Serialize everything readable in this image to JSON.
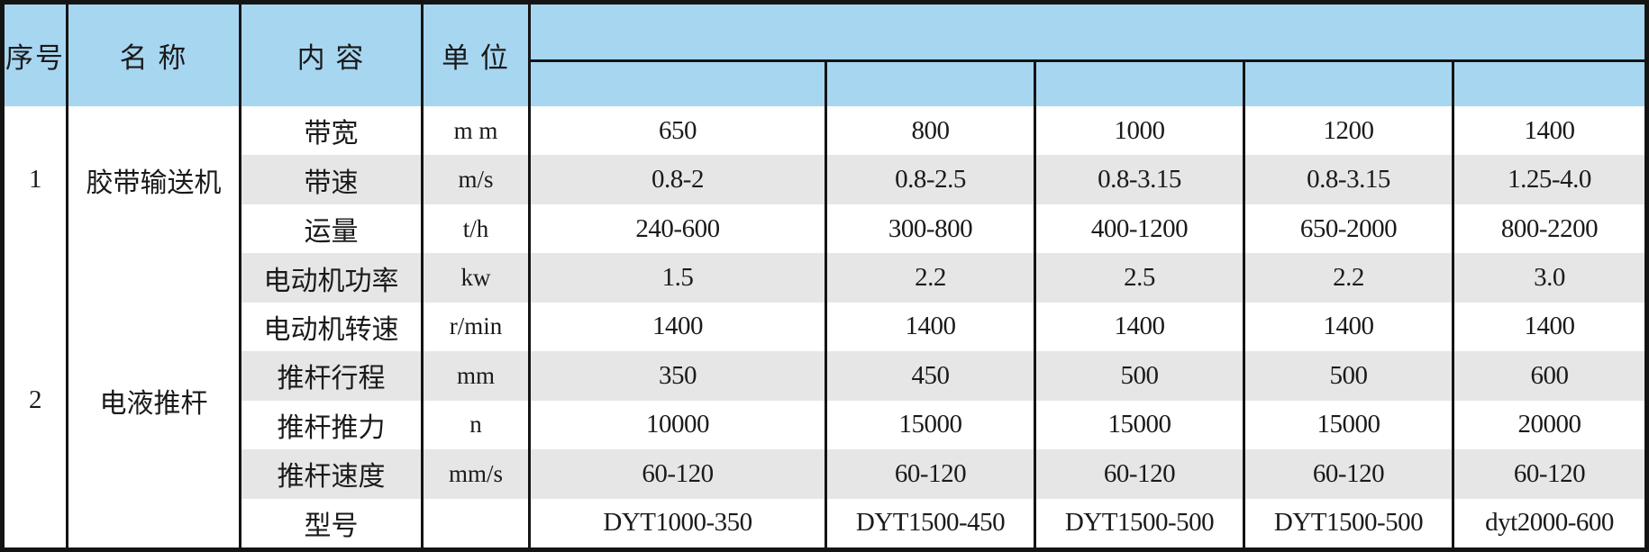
{
  "table": {
    "header": {
      "col_index": "序号",
      "col_name": "名 称",
      "col_content": "内 容",
      "col_unit": "单 位"
    },
    "colors": {
      "header_blue": "#a7d6f1",
      "stripe_gray": "#e6e6e6",
      "grid_line": "#141414"
    },
    "sections": [
      {
        "index": "1",
        "name": "胶带输送机",
        "rows": [
          {
            "label": "带宽",
            "unit": "m m",
            "values": [
              "650",
              "800",
              "1000",
              "1200",
              "1400"
            ]
          },
          {
            "label": "带速",
            "unit": "m/s",
            "values": [
              "0.8-2",
              "0.8-2.5",
              "0.8-3.15",
              "0.8-3.15",
              "1.25-4.0"
            ]
          },
          {
            "label": "运量",
            "unit": "t/h",
            "values": [
              "240-600",
              "300-800",
              "400-1200",
              "650-2000",
              "800-2200"
            ]
          }
        ]
      },
      {
        "index": "2",
        "name": "电液推杆",
        "rows": [
          {
            "label": "电动机功率",
            "unit": "kw",
            "values": [
              "1.5",
              "2.2",
              "2.5",
              "2.2",
              "3.0"
            ]
          },
          {
            "label": "电动机转速",
            "unit": "r/min",
            "values": [
              "1400",
              "1400",
              "1400",
              "1400",
              "1400"
            ]
          },
          {
            "label": "推杆行程",
            "unit": "mm",
            "values": [
              "350",
              "450",
              "500",
              "500",
              "600"
            ]
          },
          {
            "label": "推杆推力",
            "unit": "n",
            "values": [
              "10000",
              "15000",
              "15000",
              "15000",
              "20000"
            ]
          },
          {
            "label": "推杆速度",
            "unit": "mm/s",
            "values": [
              "60-120",
              "60-120",
              "60-120",
              "60-120",
              "60-120"
            ]
          },
          {
            "label": "型号",
            "unit": "",
            "values": [
              "DYT1000-350",
              "DYT1500-450",
              "DYT1500-500",
              "DYT1500-500",
              "dyt2000-600"
            ]
          }
        ]
      }
    ]
  }
}
